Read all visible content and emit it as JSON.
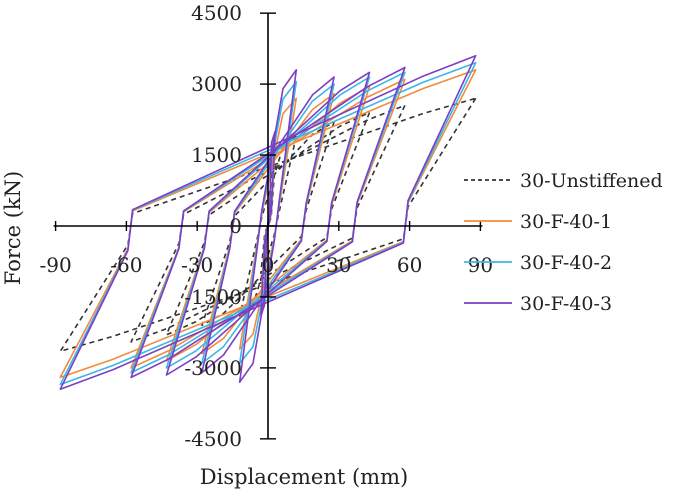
{
  "chart_data": {
    "type": "line",
    "title": "",
    "xlabel": "Displacement (mm)",
    "ylabel": "Force (kN)",
    "xlim": [
      -90,
      90
    ],
    "ylim": [
      -4500,
      4500
    ],
    "x_ticks": [
      "-90",
      "-60",
      "-30",
      "0",
      "30",
      "60",
      "90"
    ],
    "y_ticks": [
      "4500",
      "3000",
      "1500",
      "0",
      "-1500",
      "-3000",
      "-4500"
    ],
    "grid": false,
    "legend_position": "right",
    "series": [
      {
        "name": "30-Unstiffened",
        "color": "#333333",
        "dash": "dashed",
        "x": [
          -88,
          -60,
          -30,
          0,
          30,
          60,
          88
        ],
        "y": [
          -2650,
          -2500,
          -2300,
          1000,
          2200,
          2500,
          2700
        ],
        "loops": [
          {
            "amp": 3,
            "pmax": 1300,
            "pmin": -1000
          },
          {
            "amp": 12,
            "pmax": 1900,
            "pmin": -1900
          },
          {
            "amp": 28,
            "pmax": 2200,
            "pmin": -2100
          },
          {
            "amp": 43,
            "pmax": 2400,
            "pmin": -2300
          },
          {
            "amp": 58,
            "pmax": 2550,
            "pmin": -2450
          },
          {
            "amp": 88,
            "pmax": 2700,
            "pmin": -2650
          }
        ]
      },
      {
        "name": "30-F-40-1",
        "color": "#f28b3c",
        "dash": "solid",
        "x": [
          -88,
          -60,
          -30,
          0,
          30,
          60,
          88
        ],
        "y": [
          -3200,
          -3000,
          -2700,
          1600,
          2700,
          3050,
          3300
        ],
        "loops": [
          {
            "amp": 3,
            "pmax": 1700,
            "pmin": -1600
          },
          {
            "amp": 12,
            "pmax": 2700,
            "pmin": -2600
          },
          {
            "amp": 28,
            "pmax": 2800,
            "pmin": -2700
          },
          {
            "amp": 43,
            "pmax": 2950,
            "pmin": -2850
          },
          {
            "amp": 58,
            "pmax": 3100,
            "pmin": -3000
          },
          {
            "amp": 88,
            "pmax": 3300,
            "pmin": -3200
          }
        ]
      },
      {
        "name": "30-F-40-2",
        "color": "#3bb6e8",
        "dash": "solid",
        "x": [
          -88,
          -60,
          -30,
          0,
          30,
          60,
          88
        ],
        "y": [
          -3350,
          -3100,
          -2900,
          1800,
          3000,
          3250,
          3450
        ],
        "loops": [
          {
            "amp": 3,
            "pmax": 1900,
            "pmin": -1800
          },
          {
            "amp": 12,
            "pmax": 3050,
            "pmin": -2900
          },
          {
            "amp": 28,
            "pmax": 3000,
            "pmin": -2900
          },
          {
            "amp": 43,
            "pmax": 3150,
            "pmin": -3000
          },
          {
            "amp": 58,
            "pmax": 3250,
            "pmin": -3100
          },
          {
            "amp": 88,
            "pmax": 3450,
            "pmin": -3350
          }
        ]
      },
      {
        "name": "30-F-40-3",
        "color": "#7a3fc4",
        "dash": "solid",
        "x": [
          -88,
          -60,
          -30,
          0,
          30,
          60,
          88
        ],
        "y": [
          -3450,
          -3200,
          -3000,
          2000,
          3150,
          3300,
          3600
        ],
        "loops": [
          {
            "amp": 3,
            "pmax": 2000,
            "pmin": -1900
          },
          {
            "amp": 12,
            "pmax": 3300,
            "pmin": -3300
          },
          {
            "amp": 28,
            "pmax": 3150,
            "pmin": -3100
          },
          {
            "amp": 43,
            "pmax": 3250,
            "pmin": -3150
          },
          {
            "amp": 58,
            "pmax": 3350,
            "pmin": -3200
          },
          {
            "amp": 88,
            "pmax": 3600,
            "pmin": -3450
          }
        ]
      }
    ]
  }
}
